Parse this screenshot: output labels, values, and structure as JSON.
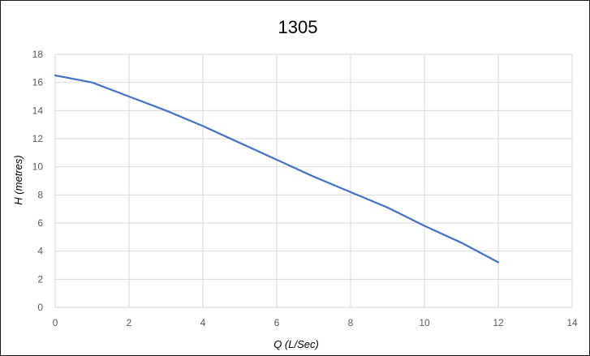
{
  "chart_data": {
    "type": "line",
    "title": "1305",
    "xlabel": "Q (L/Sec)",
    "ylabel": "H (metres)",
    "xlim": [
      0,
      14
    ],
    "ylim": [
      0,
      18
    ],
    "x_ticks": [
      0,
      2,
      4,
      6,
      8,
      10,
      12,
      14
    ],
    "y_ticks": [
      0,
      2,
      4,
      6,
      8,
      10,
      12,
      14,
      16,
      18
    ],
    "grid": true,
    "legend": "none",
    "series": [
      {
        "color": "#4472c4",
        "x": [
          0,
          1,
          2,
          3,
          4,
          5,
          6,
          7,
          8,
          9,
          10,
          11,
          12
        ],
        "y": [
          16.5,
          16.0,
          15.0,
          14.0,
          12.9,
          11.7,
          10.5,
          9.3,
          8.2,
          7.1,
          5.8,
          4.6,
          3.2
        ]
      }
    ]
  }
}
